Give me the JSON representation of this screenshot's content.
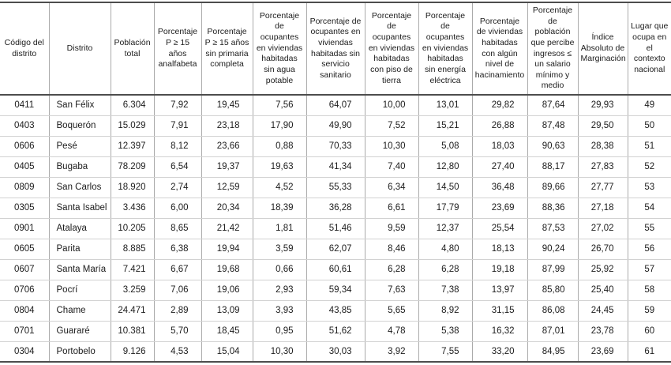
{
  "table": {
    "columns": [
      {
        "id": "codigo-distrito",
        "label": "Código del distrito"
      },
      {
        "id": "distrito",
        "label": "Distrito"
      },
      {
        "id": "poblacion-total",
        "label": "Población total"
      },
      {
        "id": "pct-analfabeta",
        "label": "Porcentaje P ≥ 15 años analfabeta"
      },
      {
        "id": "pct-sin-primaria",
        "label": "Porcentaje P ≥ 15 años sin primaria completa"
      },
      {
        "id": "pct-sin-agua",
        "label": "Porcentaje de ocupantes en viviendas habitadas sin agua potable"
      },
      {
        "id": "pct-sin-sanitario",
        "label": "Porcentaje de ocupantes en viviendas habitadas sin servicio sanitario"
      },
      {
        "id": "pct-piso-tierra",
        "label": "Porcentaje de ocupantes en viviendas habitadas con piso de tierra"
      },
      {
        "id": "pct-sin-energia",
        "label": "Porcentaje de ocupantes en viviendas habitadas sin energía eléctrica"
      },
      {
        "id": "pct-hacinamiento",
        "label": "Porcentaje de viviendas habitadas con algún nivel de hacinamiento"
      },
      {
        "id": "pct-ingresos",
        "label": "Porcentaje de población que percibe ingresos ≤ un salario mínimo y medio"
      },
      {
        "id": "indice-marginacion",
        "label": "Índice Absoluto de Marginación"
      },
      {
        "id": "lugar-nacional",
        "label": "Lugar que ocupa en el contexto nacional"
      }
    ],
    "rows": [
      [
        "0411",
        "San Félix",
        "6.304",
        "7,92",
        "19,45",
        "7,56",
        "64,07",
        "10,00",
        "13,01",
        "29,82",
        "87,64",
        "29,93",
        "49"
      ],
      [
        "0403",
        "Boquerón",
        "15.029",
        "7,91",
        "23,18",
        "17,90",
        "49,90",
        "7,52",
        "15,21",
        "26,88",
        "87,48",
        "29,50",
        "50"
      ],
      [
        "0606",
        "Pesé",
        "12.397",
        "8,12",
        "23,66",
        "0,88",
        "70,33",
        "10,30",
        "5,08",
        "18,03",
        "90,63",
        "28,38",
        "51"
      ],
      [
        "0405",
        "Bugaba",
        "78.209",
        "6,54",
        "19,37",
        "19,63",
        "41,34",
        "7,40",
        "12,80",
        "27,40",
        "88,17",
        "27,83",
        "52"
      ],
      [
        "0809",
        "San Carlos",
        "18.920",
        "2,74",
        "12,59",
        "4,52",
        "55,33",
        "6,34",
        "14,50",
        "36,48",
        "89,66",
        "27,77",
        "53"
      ],
      [
        "0305",
        "Santa Isabel",
        "3.436",
        "6,00",
        "20,34",
        "18,39",
        "36,28",
        "6,61",
        "17,79",
        "23,69",
        "88,36",
        "27,18",
        "54"
      ],
      [
        "0901",
        "Atalaya",
        "10.205",
        "8,65",
        "21,42",
        "1,81",
        "51,46",
        "9,59",
        "12,37",
        "25,54",
        "87,53",
        "27,02",
        "55"
      ],
      [
        "0605",
        "Parita",
        "8.885",
        "6,38",
        "19,94",
        "3,59",
        "62,07",
        "8,46",
        "4,80",
        "18,13",
        "90,24",
        "26,70",
        "56"
      ],
      [
        "0607",
        "Santa María",
        "7.421",
        "6,67",
        "19,68",
        "0,66",
        "60,61",
        "6,28",
        "6,28",
        "19,18",
        "87,99",
        "25,92",
        "57"
      ],
      [
        "0706",
        "Pocrí",
        "3.259",
        "7,06",
        "19,06",
        "2,93",
        "59,34",
        "7,63",
        "7,38",
        "13,97",
        "85,80",
        "25,40",
        "58"
      ],
      [
        "0804",
        "Chame",
        "24.471",
        "2,89",
        "13,09",
        "3,93",
        "43,85",
        "5,65",
        "8,92",
        "31,15",
        "86,08",
        "24,45",
        "59"
      ],
      [
        "0701",
        "Guararé",
        "10.381",
        "5,70",
        "18,45",
        "0,95",
        "51,62",
        "4,78",
        "5,38",
        "16,32",
        "87,01",
        "23,78",
        "60"
      ],
      [
        "0304",
        "Portobelo",
        "9.126",
        "4,53",
        "15,04",
        "10,30",
        "30,03",
        "3,92",
        "7,55",
        "33,20",
        "84,95",
        "23,69",
        "61"
      ]
    ]
  }
}
